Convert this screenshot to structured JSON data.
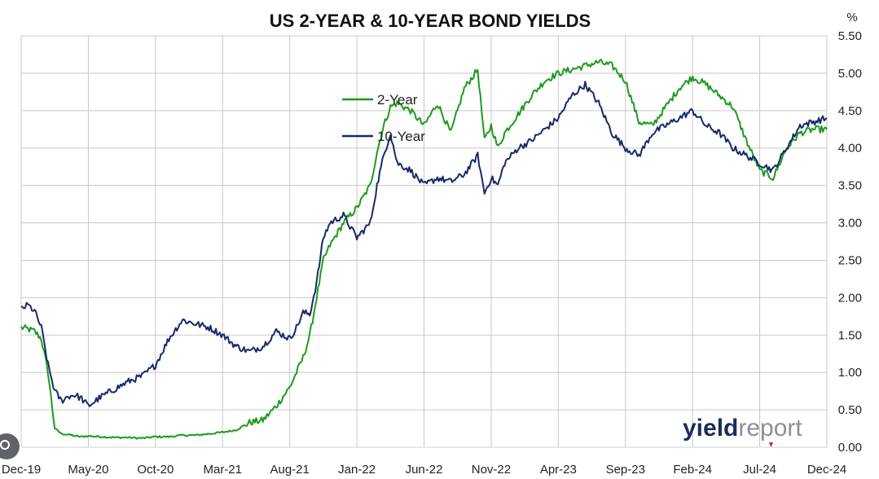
{
  "chart_data": {
    "type": "line",
    "title": "US 2-YEAR & 10-YEAR BOND YIELDS",
    "ylabel": "%",
    "xlabel": "",
    "ylim": [
      0,
      5.5
    ],
    "yticks": [
      "0.00",
      "0.50",
      "1.00",
      "1.50",
      "2.00",
      "2.50",
      "3.00",
      "3.50",
      "4.00",
      "4.50",
      "5.00",
      "5.50"
    ],
    "categories": [
      "Dec-19",
      "May-20",
      "Oct-20",
      "Mar-21",
      "Aug-21",
      "Jan-22",
      "Jun-22",
      "Nov-22",
      "Apr-23",
      "Sep-23",
      "Feb-24",
      "Jul-24",
      "Dec-24"
    ],
    "legend": "upper-left",
    "watermark": {
      "part1": "yield",
      "part2": "report"
    },
    "colors": {
      "two_year": "#1f9a1f",
      "ten_year": "#152a6b",
      "grid": "#c8c8c8"
    },
    "series": [
      {
        "name": "2-Year",
        "color": "#1f9a1f",
        "x": [
          0,
          0.5,
          1,
          1.5,
          2,
          2.5,
          3,
          3.5,
          4,
          4.5,
          5,
          6,
          7,
          8,
          9,
          10,
          11,
          12,
          13,
          14,
          15,
          16,
          17,
          18,
          19,
          20,
          20.5,
          21,
          21.5,
          22,
          22.5,
          23,
          24,
          25,
          26,
          26.5,
          27,
          27.5,
          28,
          29,
          30,
          31,
          32,
          33,
          34,
          34.5,
          35,
          35.5,
          36,
          37,
          38,
          39,
          40,
          41,
          42,
          43,
          44,
          45,
          46,
          47,
          48,
          49,
          50,
          51,
          52,
          53,
          54,
          55,
          56,
          57,
          58,
          59,
          60
        ],
        "values": [
          1.6,
          1.58,
          1.55,
          1.45,
          1.0,
          0.25,
          0.18,
          0.17,
          0.15,
          0.14,
          0.15,
          0.14,
          0.13,
          0.13,
          0.12,
          0.14,
          0.14,
          0.16,
          0.16,
          0.18,
          0.2,
          0.23,
          0.33,
          0.36,
          0.55,
          0.8,
          1.0,
          1.2,
          1.5,
          2.0,
          2.5,
          2.7,
          3.0,
          3.2,
          3.5,
          3.95,
          4.3,
          4.55,
          4.6,
          4.5,
          4.3,
          4.6,
          4.2,
          4.8,
          5.05,
          4.1,
          4.3,
          4.0,
          4.2,
          4.45,
          4.7,
          4.9,
          5.0,
          5.05,
          5.1,
          5.15,
          5.1,
          4.9,
          4.35,
          4.3,
          4.55,
          4.8,
          4.95,
          4.85,
          4.7,
          4.55,
          4.1,
          3.7,
          3.6,
          4.0,
          4.2,
          4.25,
          4.25
        ]
      },
      {
        "name": "10-Year",
        "color": "#152a6b",
        "x": [
          0,
          0.5,
          1,
          1.5,
          2,
          2.5,
          3,
          3.5,
          4,
          4.5,
          5,
          6,
          7,
          8,
          9,
          10,
          11,
          12,
          13,
          14,
          15,
          16,
          17,
          18,
          19,
          20,
          20.5,
          21,
          21.5,
          22,
          22.5,
          23,
          24,
          25,
          26,
          26.5,
          27,
          27.5,
          28,
          29,
          30,
          31,
          32,
          33,
          34,
          34.5,
          35,
          35.5,
          36,
          37,
          38,
          39,
          40,
          41,
          42,
          43,
          44,
          45,
          46,
          47,
          48,
          49,
          50,
          51,
          52,
          53,
          54,
          55,
          56,
          57,
          58,
          59,
          60
        ],
        "values": [
          1.85,
          1.9,
          1.82,
          1.6,
          1.1,
          0.75,
          0.62,
          0.68,
          0.7,
          0.65,
          0.55,
          0.68,
          0.78,
          0.88,
          0.95,
          1.1,
          1.45,
          1.7,
          1.65,
          1.6,
          1.5,
          1.35,
          1.28,
          1.35,
          1.55,
          1.45,
          1.6,
          1.8,
          1.78,
          2.2,
          2.8,
          3.0,
          3.1,
          2.8,
          3.0,
          3.5,
          3.9,
          4.2,
          3.8,
          3.7,
          3.5,
          3.6,
          3.55,
          3.65,
          3.9,
          3.4,
          3.6,
          3.5,
          3.8,
          4.0,
          4.1,
          4.25,
          4.4,
          4.7,
          4.85,
          4.6,
          4.2,
          4.0,
          3.9,
          4.2,
          4.3,
          4.4,
          4.5,
          4.3,
          4.2,
          4.0,
          3.9,
          3.8,
          3.7,
          4.0,
          4.3,
          4.35,
          4.4
        ]
      }
    ]
  }
}
